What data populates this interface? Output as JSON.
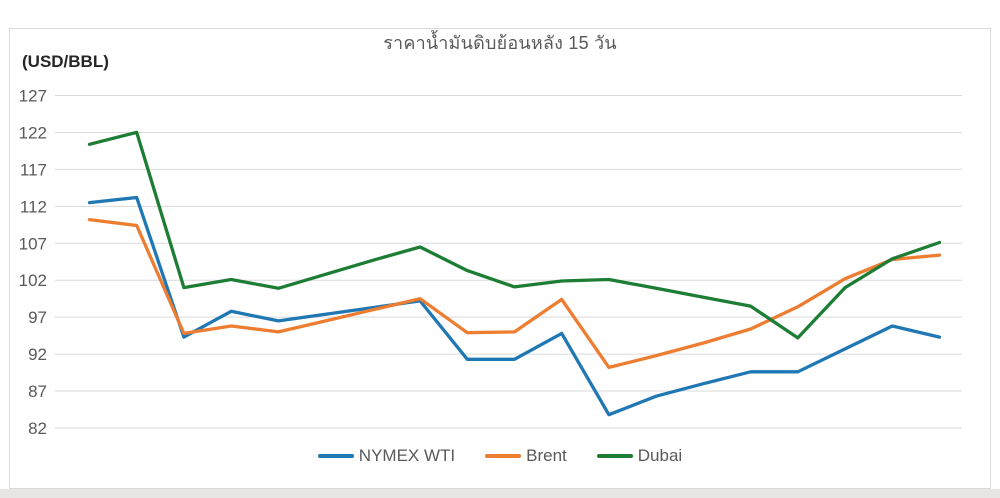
{
  "chart_data": {
    "type": "line",
    "title": "ราคาน้ำมันดิบย้อนหลัง 15 วัน",
    "ylabel": "(USD/BBL)",
    "x": [
      1,
      2,
      3,
      4,
      5,
      6,
      7,
      8,
      9,
      10,
      11,
      12,
      13,
      14,
      15,
      16,
      17,
      18,
      19
    ],
    "x_axis_labels_visible": false,
    "ylim": [
      82,
      127
    ],
    "y_ticks": [
      82,
      87,
      92,
      97,
      102,
      107,
      112,
      117,
      122,
      127
    ],
    "grid": true,
    "legend_position": "bottom-center",
    "colors": {
      "gridline": "#D9D9D9",
      "axis_text": "#595959",
      "title_text": "#595959",
      "unit_text": "#262626",
      "frame_border": "#D9D9D9",
      "bottom_strip": "#E8E6E4"
    },
    "series": [
      {
        "name": "NYMEX WTI",
        "color": "#1F77B4",
        "values": [
          112.5,
          113.2,
          94.3,
          97.8,
          96.5,
          97.4,
          98.3,
          99.2,
          91.3,
          91.3,
          94.8,
          83.8,
          86.3,
          88.0,
          89.6,
          89.6,
          92.7,
          95.8,
          94.3
        ]
      },
      {
        "name": "Brent",
        "color": "#ED7D31",
        "values": [
          110.2,
          109.4,
          94.8,
          95.8,
          95.0,
          96.5,
          98.0,
          99.5,
          94.9,
          95.0,
          99.4,
          90.2,
          91.8,
          93.5,
          95.4,
          98.4,
          102.2,
          104.8,
          105.4
        ]
      },
      {
        "name": "Dubai",
        "color": "#1E7D34",
        "values": [
          120.4,
          122.0,
          101.0,
          102.1,
          100.9,
          102.8,
          104.7,
          106.5,
          103.3,
          101.1,
          101.9,
          102.1,
          100.9,
          99.7,
          98.5,
          94.2,
          101.0,
          104.9,
          107.1
        ]
      }
    ]
  }
}
